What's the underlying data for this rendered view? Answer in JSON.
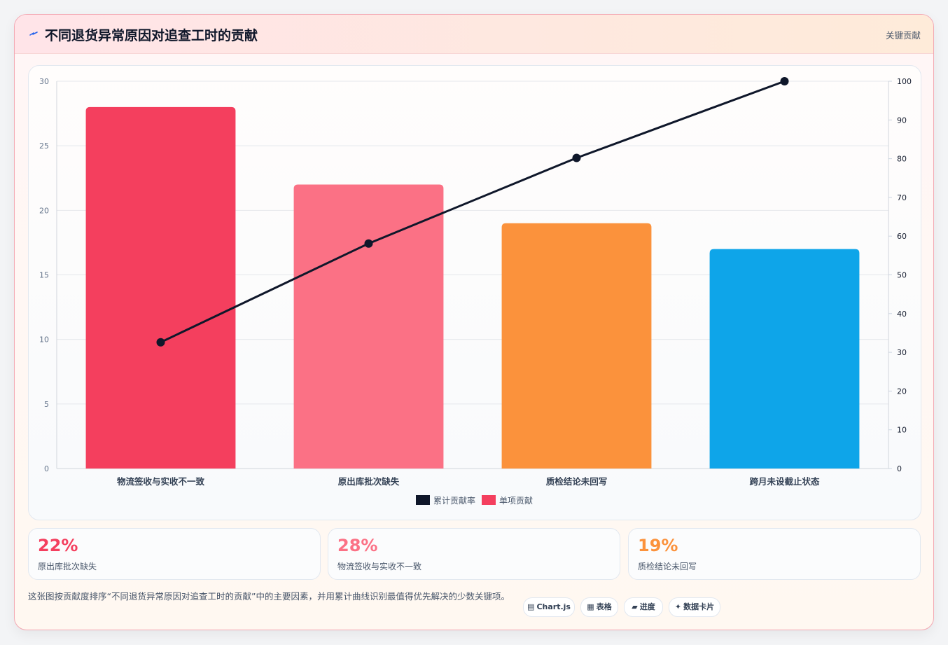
{
  "header": {
    "title": "不同退货异常原因对追查工时的贡献",
    "tag": "关键贡献",
    "bolt_color": "#2563eb"
  },
  "chart_data": {
    "type": "bar",
    "categories": [
      "物流签收与实收不一致",
      "原出库批次缺失",
      "质检结论未回写",
      "跨月未设截止状态"
    ],
    "series": [
      {
        "name": "单项贡献",
        "type": "bar",
        "axis": "left",
        "values": [
          28,
          22,
          19,
          17
        ],
        "colors": [
          "#f43f5e",
          "#fb7185",
          "#fb923c",
          "#0ea5e9"
        ]
      },
      {
        "name": "累计贡献率",
        "type": "line",
        "axis": "right",
        "values": [
          32.6,
          58.1,
          80.2,
          100
        ],
        "color": "#0f172a"
      }
    ],
    "y_left": {
      "min": 0,
      "max": 30,
      "ticks": [
        "0",
        "5",
        "10",
        "15",
        "20",
        "25",
        "30"
      ]
    },
    "y_right": {
      "min": 0,
      "max": 100,
      "ticks": [
        "0",
        "10",
        "20",
        "30",
        "40",
        "50",
        "60",
        "70",
        "80",
        "90",
        "100"
      ]
    },
    "grid": true,
    "legend": {
      "position": "bottom",
      "items": [
        {
          "label": "累计贡献率",
          "color": "#0f172a"
        },
        {
          "label": "单项贡献",
          "color": "#f43f5e"
        }
      ]
    }
  },
  "stats": [
    {
      "value": "22%",
      "label": "原出库批次缺失",
      "color": "#f43f5e"
    },
    {
      "value": "28%",
      "label": "物流签收与实收不一致",
      "color": "#fb7185"
    },
    {
      "value": "19%",
      "label": "质检结论未回写",
      "color": "#fb923c"
    }
  ],
  "description": "这张图按贡献度排序“不同退货异常原因对追查工时的贡献”中的主要因素，并用累计曲线识别最值得优先解决的少数关键项。",
  "chips": [
    {
      "icon": "▤",
      "icon_name": "chart-icon",
      "label": "Chart.js"
    },
    {
      "icon": "▦",
      "icon_name": "table-icon",
      "label": "表格"
    },
    {
      "icon": "▰",
      "icon_name": "progress-icon",
      "label": "进度"
    },
    {
      "icon": "✦",
      "icon_name": "sparkle-icon",
      "label": "数据卡片"
    }
  ]
}
